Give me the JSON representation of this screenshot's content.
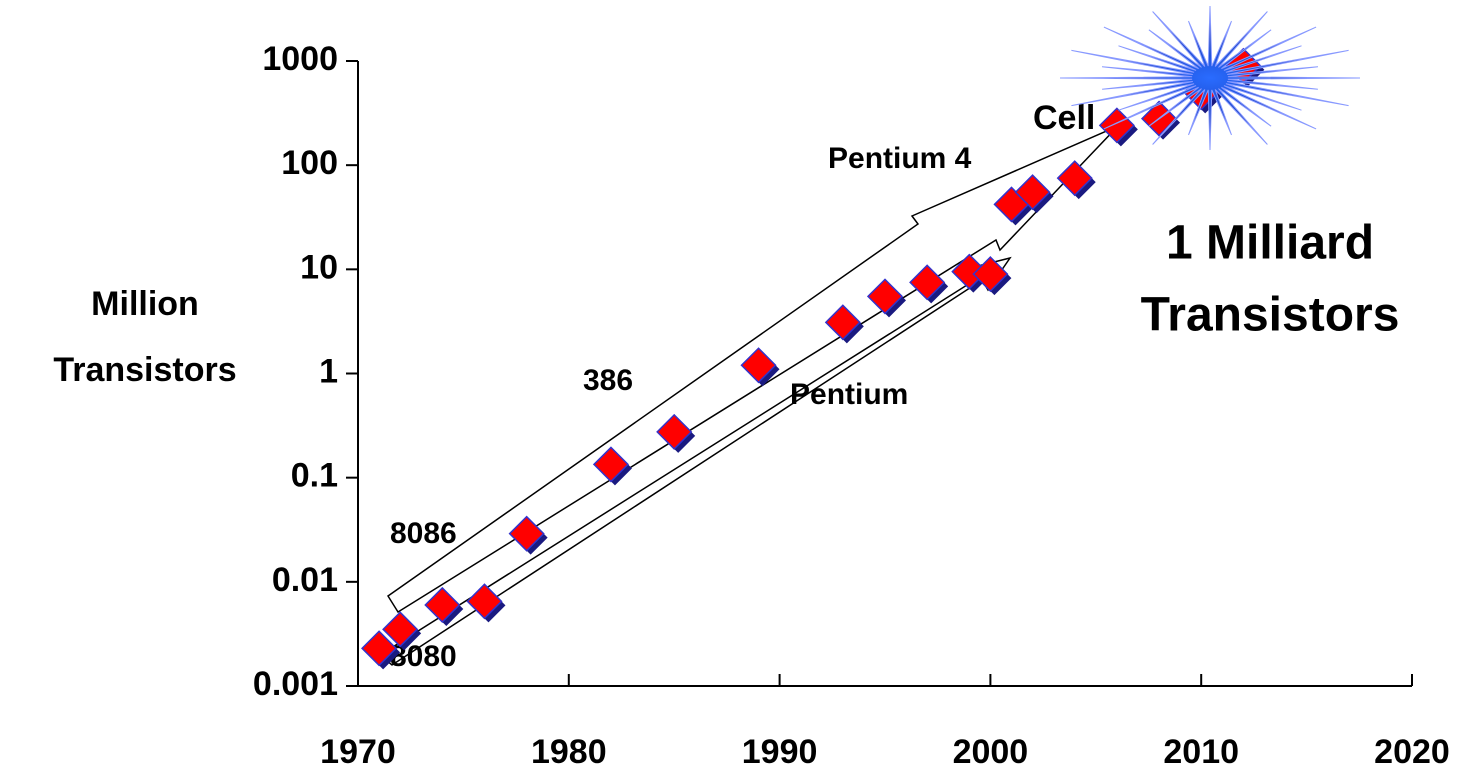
{
  "chart_data": {
    "type": "scatter",
    "log_y": true,
    "y_label": [
      "Million",
      "Transistors"
    ],
    "x": [
      1971,
      1972,
      1974,
      1976,
      1978,
      1982,
      1985,
      1989,
      1993,
      1995,
      1997,
      1999,
      2000,
      2001,
      2002,
      2004,
      2006,
      2008,
      2010,
      2012
    ],
    "values": [
      0.0023,
      0.0035,
      0.006,
      0.0065,
      0.029,
      0.134,
      0.275,
      1.2,
      3.1,
      5.5,
      7.5,
      9.5,
      9,
      42,
      55,
      75,
      241,
      280,
      500,
      900
    ],
    "color": "#ff0000",
    "xlim": [
      1970,
      2020
    ],
    "xticks": [
      1970,
      1980,
      1990,
      2000,
      2010,
      2020
    ],
    "ylim": [
      0.001,
      1000
    ],
    "yticks": [
      0.001,
      0.01,
      0.1,
      1,
      10,
      100,
      1000
    ],
    "annotations": [
      "8080",
      "8086",
      "386",
      "Pentium",
      "Pentium 4",
      "Cell"
    ],
    "callout": [
      "1 Milliard",
      "Transistors"
    ]
  }
}
